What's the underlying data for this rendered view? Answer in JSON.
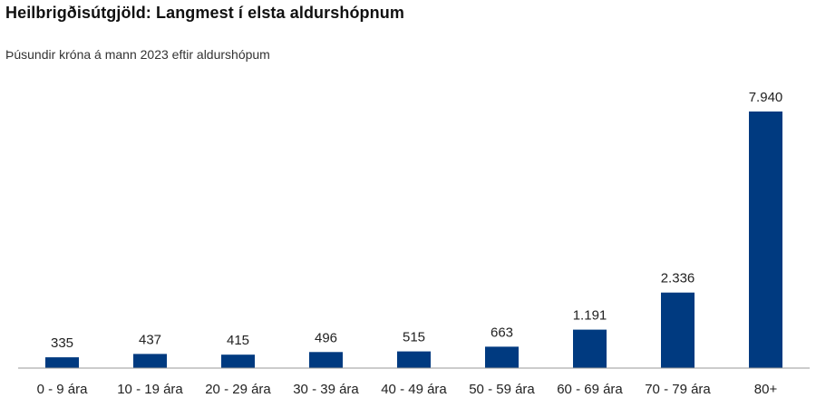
{
  "header": {
    "title": "Heilbrigðisútgjöld: Langmest í elsta aldurshópnum",
    "subtitle": "Þúsundir króna á mann 2023 eftir aldurshópum"
  },
  "chart_data": {
    "type": "bar",
    "categories": [
      "0 - 9 ára",
      "10 - 19 ára",
      "20 - 29 ára",
      "30 - 39 ára",
      "40 - 49 ára",
      "50 - 59 ára",
      "60 - 69 ára",
      "70 - 79 ára",
      "80+"
    ],
    "values": [
      335,
      437,
      415,
      496,
      515,
      663,
      1191,
      2336,
      7940
    ],
    "data_labels": [
      "335",
      "437",
      "415",
      "496",
      "515",
      "663",
      "1.191",
      "2.336",
      "7.940"
    ],
    "bar_color": "#003a80",
    "axis_color": "#999999",
    "ylim": [
      0,
      7940
    ],
    "grid": false,
    "legend": "none"
  }
}
